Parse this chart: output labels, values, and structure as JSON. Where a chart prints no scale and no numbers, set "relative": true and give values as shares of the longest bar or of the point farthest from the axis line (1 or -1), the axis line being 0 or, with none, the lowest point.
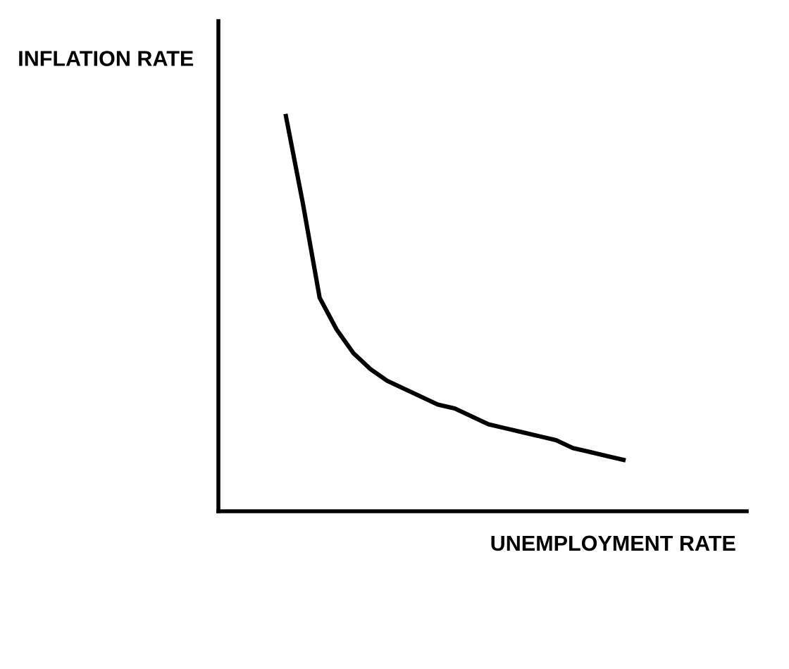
{
  "chart_data": {
    "type": "line",
    "relative": true,
    "ylabel": "INFLATION RATE",
    "xlabel": "UNEMPLOYMENT RATE",
    "categories": [
      null,
      null,
      null,
      null,
      null,
      null,
      null,
      null,
      null,
      null,
      null,
      null,
      null,
      null,
      null,
      null,
      null,
      null,
      null,
      null,
      null
    ],
    "series": [
      {
        "color": "#000000",
        "values": [
          1.0,
          0.78,
          0.54,
          0.46,
          0.4,
          0.36,
          0.33,
          0.31,
          0.29,
          0.27,
          0.26,
          0.24,
          0.22,
          0.21,
          0.2,
          0.19,
          0.18,
          0.16,
          0.15,
          0.14,
          0.13
        ]
      }
    ],
    "grid": false,
    "legend": false,
    "marker": "none",
    "line_style": "solid"
  }
}
